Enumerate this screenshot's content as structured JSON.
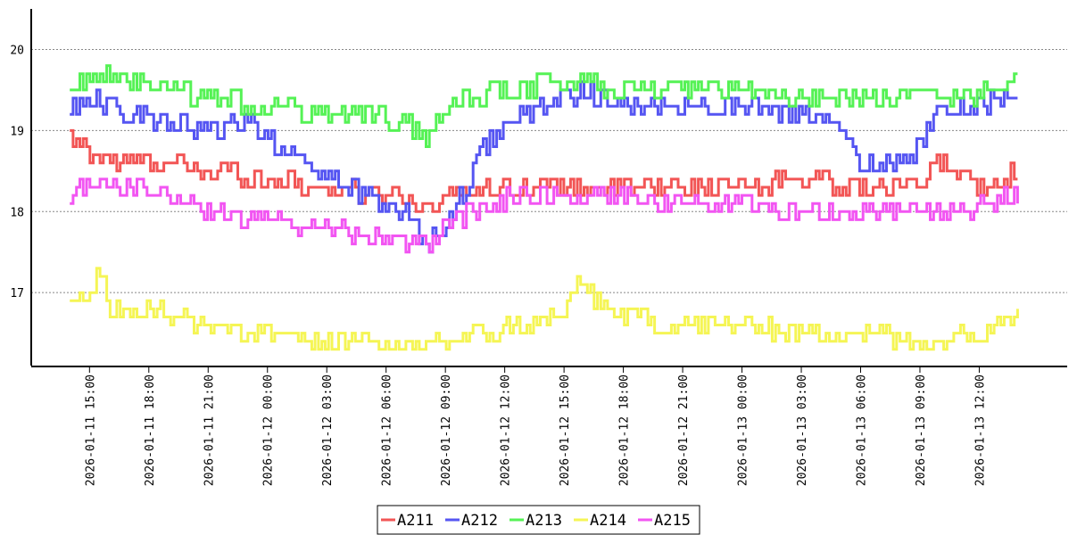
{
  "chart_data": {
    "type": "line",
    "title": "",
    "xlabel": "",
    "ylabel": "",
    "xlim": [
      "2026-01-11 13:00",
      "2026-01-13 15:30"
    ],
    "ylim": [
      16.1,
      20.5
    ],
    "yticks": [
      17,
      18,
      19,
      20
    ],
    "xticks": [
      "2026-01-11 15:00",
      "2026-01-11 18:00",
      "2026-01-11 21:00",
      "2026-01-12 00:00",
      "2026-01-12 03:00",
      "2026-01-12 06:00",
      "2026-01-12 09:00",
      "2026-01-12 12:00",
      "2026-01-12 15:00",
      "2026-01-12 18:00",
      "2026-01-12 21:00",
      "2026-01-13 00:00",
      "2026-01-13 03:00",
      "2026-01-13 06:00",
      "2026-01-13 09:00",
      "2026-01-13 12:00"
    ],
    "grid": "horizontal dotted",
    "legend_position": "bottom",
    "series": [
      {
        "name": "A211",
        "color": "#f25555",
        "x": [
          "2026-01-11 14:00",
          "2026-01-11 15:00",
          "2026-01-11 17:00",
          "2026-01-11 19:00",
          "2026-01-11 21:00",
          "2026-01-12 00:00",
          "2026-01-12 03:00",
          "2026-01-12 06:00",
          "2026-01-12 08:00",
          "2026-01-12 09:30",
          "2026-01-12 11:00",
          "2026-01-12 13:00",
          "2026-01-12 15:00",
          "2026-01-12 18:00",
          "2026-01-12 21:00",
          "2026-01-13 00:00",
          "2026-01-13 03:00",
          "2026-01-13 06:00",
          "2026-01-13 09:00",
          "2026-01-13 10:00",
          "2026-01-13 11:00",
          "2026-01-13 12:00",
          "2026-01-13 14:00"
        ],
        "values": [
          18.9,
          18.7,
          18.6,
          18.6,
          18.5,
          18.4,
          18.3,
          18.2,
          18.1,
          18.2,
          18.3,
          18.3,
          18.3,
          18.3,
          18.3,
          18.3,
          18.4,
          18.3,
          18.3,
          18.6,
          18.5,
          18.3,
          18.5
        ]
      },
      {
        "name": "A212",
        "color": "#5555f2",
        "x": [
          "2026-01-11 14:00",
          "2026-01-11 15:00",
          "2026-01-11 17:00",
          "2026-01-11 19:00",
          "2026-01-11 21:00",
          "2026-01-11 23:00",
          "2026-01-12 00:00",
          "2026-01-12 02:00",
          "2026-01-12 04:00",
          "2026-01-12 06:00",
          "2026-01-12 07:00",
          "2026-01-12 08:00",
          "2026-01-12 09:00",
          "2026-01-12 10:00",
          "2026-01-12 11:00",
          "2026-01-12 12:00",
          "2026-01-12 13:00",
          "2026-01-12 15:00",
          "2026-01-12 16:00",
          "2026-01-12 18:00",
          "2026-01-12 21:00",
          "2026-01-13 00:00",
          "2026-01-13 03:00",
          "2026-01-13 05:00",
          "2026-01-13 06:00",
          "2026-01-13 08:00",
          "2026-01-13 09:00",
          "2026-01-13 10:00",
          "2026-01-13 12:00",
          "2026-01-13 14:00"
        ],
        "values": [
          19.3,
          19.4,
          19.2,
          19.1,
          19.0,
          19.1,
          18.9,
          18.6,
          18.3,
          18.1,
          18.0,
          17.6,
          17.8,
          18.3,
          18.8,
          19.1,
          19.2,
          19.4,
          19.5,
          19.3,
          19.3,
          19.3,
          19.2,
          19.0,
          18.6,
          18.6,
          18.8,
          19.3,
          19.3,
          19.5
        ]
      },
      {
        "name": "A213",
        "color": "#55f255",
        "x": [
          "2026-01-11 14:00",
          "2026-01-11 15:00",
          "2026-01-11 17:00",
          "2026-01-11 19:00",
          "2026-01-11 21:00",
          "2026-01-12 00:00",
          "2026-01-12 03:00",
          "2026-01-12 05:00",
          "2026-01-12 07:00",
          "2026-01-12 08:00",
          "2026-01-12 09:00",
          "2026-01-12 10:00",
          "2026-01-12 12:00",
          "2026-01-12 15:00",
          "2026-01-12 16:00",
          "2026-01-12 18:00",
          "2026-01-12 21:00",
          "2026-01-13 00:00",
          "2026-01-13 03:00",
          "2026-01-13 06:00",
          "2026-01-13 08:00",
          "2026-01-13 09:00",
          "2026-01-13 11:00",
          "2026-01-13 14:00"
        ],
        "values": [
          19.5,
          19.7,
          19.6,
          19.5,
          19.4,
          19.3,
          19.2,
          19.2,
          19.1,
          18.9,
          19.2,
          19.4,
          19.5,
          19.6,
          19.6,
          19.5,
          19.5,
          19.5,
          19.4,
          19.4,
          19.4,
          19.5,
          19.4,
          19.6
        ]
      },
      {
        "name": "A214",
        "color": "#f5f555",
        "x": [
          "2026-01-11 14:00",
          "2026-01-11 15:00",
          "2026-01-11 15:30",
          "2026-01-11 16:00",
          "2026-01-11 18:00",
          "2026-01-11 21:00",
          "2026-01-12 00:00",
          "2026-01-12 03:00",
          "2026-01-12 05:00",
          "2026-01-12 07:00",
          "2026-01-12 09:00",
          "2026-01-12 11:00",
          "2026-01-12 13:00",
          "2026-01-12 15:00",
          "2026-01-12 15:30",
          "2026-01-12 18:00",
          "2026-01-12 21:00",
          "2026-01-13 00:00",
          "2026-01-13 03:00",
          "2026-01-13 06:00",
          "2026-01-13 09:00",
          "2026-01-13 12:00",
          "2026-01-13 14:00"
        ],
        "values": [
          16.8,
          16.9,
          17.3,
          16.8,
          16.8,
          16.6,
          16.5,
          16.4,
          16.4,
          16.3,
          16.4,
          16.5,
          16.6,
          16.7,
          17.1,
          16.7,
          16.6,
          16.6,
          16.5,
          16.5,
          16.4,
          16.5,
          16.8
        ]
      },
      {
        "name": "A215",
        "color": "#f255f2",
        "x": [
          "2026-01-11 14:00",
          "2026-01-11 15:00",
          "2026-01-11 17:00",
          "2026-01-11 19:00",
          "2026-01-11 21:00",
          "2026-01-12 00:00",
          "2026-01-12 03:00",
          "2026-01-12 05:00",
          "2026-01-12 07:00",
          "2026-01-12 08:00",
          "2026-01-12 09:00",
          "2026-01-12 11:00",
          "2026-01-12 13:00",
          "2026-01-12 16:00",
          "2026-01-12 18:00",
          "2026-01-12 21:00",
          "2026-01-13 00:00",
          "2026-01-13 03:00",
          "2026-01-13 06:00",
          "2026-01-13 09:00",
          "2026-01-13 11:00",
          "2026-01-13 14:00"
        ],
        "values": [
          18.2,
          18.3,
          18.3,
          18.2,
          18.0,
          17.9,
          17.8,
          17.7,
          17.6,
          17.6,
          17.8,
          18.1,
          18.2,
          18.2,
          18.2,
          18.1,
          18.1,
          18.0,
          18.0,
          18.0,
          18.0,
          18.2
        ]
      }
    ]
  }
}
